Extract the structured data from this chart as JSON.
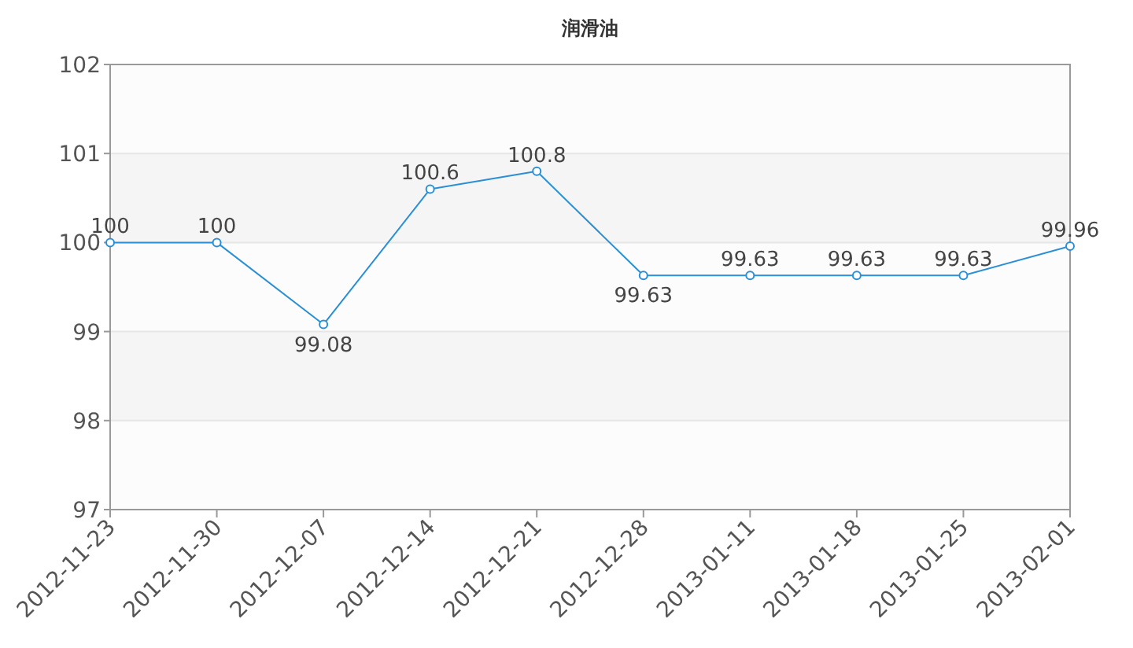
{
  "chart_data": {
    "type": "line",
    "title": "润滑油",
    "categories": [
      "2012-11-23",
      "2012-11-30",
      "2012-12-07",
      "2012-12-14",
      "2012-12-21",
      "2012-12-28",
      "2013-01-11",
      "2013-01-18",
      "2013-01-25",
      "2013-02-01"
    ],
    "series": [
      {
        "color": "#2b8fd6",
        "values": [
          100,
          100,
          99.08,
          100.6,
          100.8,
          99.63,
          99.63,
          99.63,
          99.63,
          99.96
        ]
      }
    ],
    "ylim": [
      97,
      102
    ],
    "yticks": [
      97,
      98,
      99,
      100,
      101,
      102
    ],
    "grid": "y",
    "marker": "circle",
    "line_style": "solid",
    "data_labels": true
  }
}
